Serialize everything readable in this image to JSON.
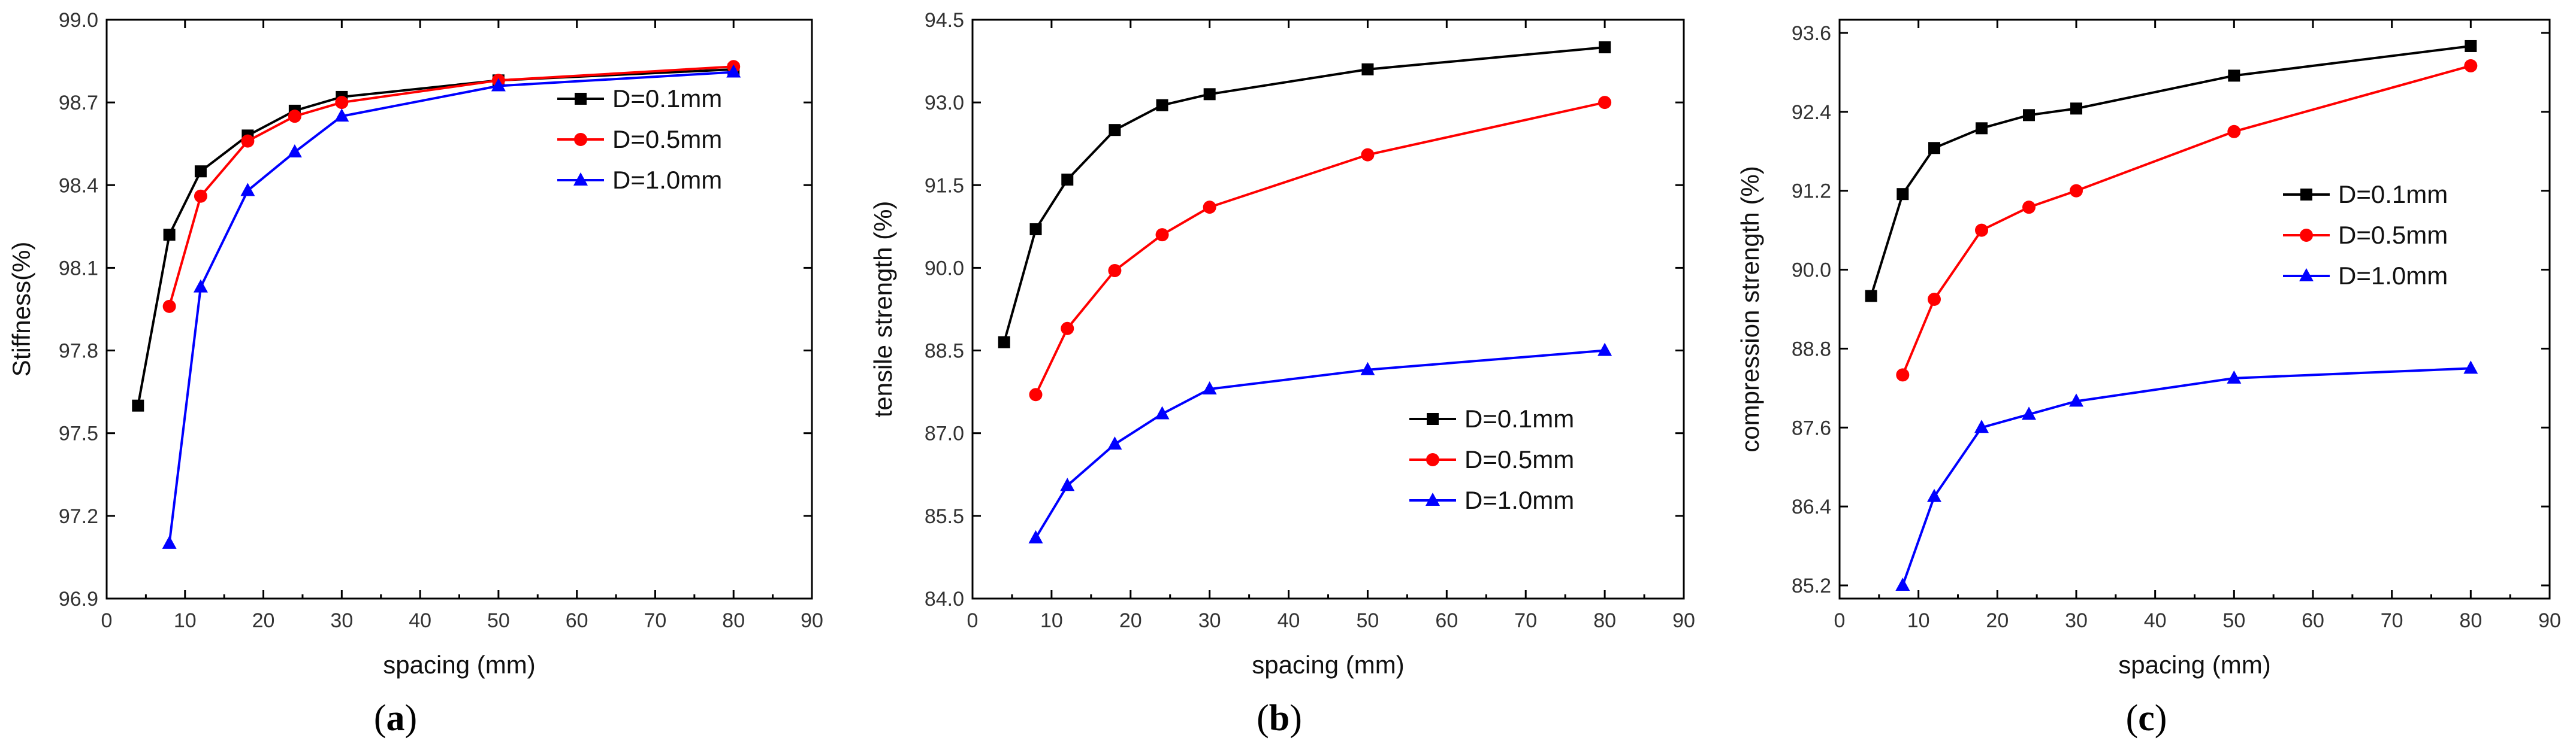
{
  "chart_data": [
    {
      "type": "line",
      "panel_label_open": "(",
      "panel_label_letter": "a",
      "panel_label_close": ")",
      "xlabel": "spacing (mm)",
      "ylabel": "Stiffness(%)",
      "xlim": [
        0,
        90
      ],
      "ylim": [
        96.9,
        99.0
      ],
      "xticks": [
        "0",
        "10",
        "20",
        "30",
        "40",
        "50",
        "60",
        "70",
        "80",
        "90"
      ],
      "yticks": [
        "96.9",
        "97.2",
        "97.5",
        "97.8",
        "98.1",
        "98.4",
        "98.7",
        "99.0"
      ],
      "legend_position": "center-right",
      "series": [
        {
          "name": "D=0.1mm",
          "color": "#000000",
          "marker": "square",
          "x": [
            4,
            8,
            12,
            18,
            24,
            30,
            50,
            80
          ],
          "y": [
            97.6,
            98.22,
            98.45,
            98.58,
            98.67,
            98.72,
            98.78,
            98.82
          ]
        },
        {
          "name": "D=0.5mm",
          "color": "#ff0000",
          "marker": "circle",
          "x": [
            8,
            12,
            18,
            24,
            30,
            50,
            80
          ],
          "y": [
            97.96,
            98.36,
            98.56,
            98.65,
            98.7,
            98.78,
            98.83
          ]
        },
        {
          "name": "D=1.0mm",
          "color": "#0000ff",
          "marker": "triangle",
          "x": [
            8,
            12,
            18,
            24,
            30,
            50,
            80
          ],
          "y": [
            97.1,
            98.03,
            98.38,
            98.52,
            98.65,
            98.76,
            98.81
          ]
        }
      ]
    },
    {
      "type": "line",
      "panel_label_open": "(",
      "panel_label_letter": "b",
      "panel_label_close": ")",
      "xlabel": "spacing (mm)",
      "ylabel": "tensile strength (%)",
      "xlim": [
        0,
        90
      ],
      "ylim": [
        84.0,
        94.5
      ],
      "xticks": [
        "0",
        "10",
        "20",
        "30",
        "40",
        "50",
        "60",
        "70",
        "80",
        "90"
      ],
      "yticks": [
        "84.0",
        "85.5",
        "87.0",
        "88.5",
        "90.0",
        "91.5",
        "93.0",
        "94.5"
      ],
      "legend_position": "bottom-right",
      "series": [
        {
          "name": "D=0.1mm",
          "color": "#000000",
          "marker": "square",
          "x": [
            4,
            8,
            12,
            18,
            24,
            30,
            50,
            80
          ],
          "y": [
            88.65,
            90.7,
            91.6,
            92.5,
            92.95,
            93.15,
            93.6,
            94.0
          ]
        },
        {
          "name": "D=0.5mm",
          "color": "#ff0000",
          "marker": "circle",
          "x": [
            8,
            12,
            18,
            24,
            30,
            50,
            80
          ],
          "y": [
            87.7,
            88.9,
            89.95,
            90.6,
            91.1,
            92.05,
            93.0
          ]
        },
        {
          "name": "D=1.0mm",
          "color": "#0000ff",
          "marker": "triangle",
          "x": [
            8,
            12,
            18,
            24,
            30,
            50,
            80
          ],
          "y": [
            85.1,
            86.05,
            86.8,
            87.35,
            87.8,
            88.15,
            88.5
          ]
        }
      ]
    },
    {
      "type": "line",
      "panel_label_open": "(",
      "panel_label_letter": "c",
      "panel_label_close": ")",
      "xlabel": "spacing (mm)",
      "ylabel": "compression strength (%)",
      "xlim": [
        0,
        90
      ],
      "ylim": [
        85.0,
        93.8
      ],
      "xticks": [
        "0",
        "10",
        "20",
        "30",
        "40",
        "50",
        "60",
        "70",
        "80",
        "90"
      ],
      "yticks": [
        "85.2",
        "86.4",
        "87.6",
        "88.8",
        "90.0",
        "91.2",
        "92.4",
        "93.6"
      ],
      "legend_position": "center-right",
      "series": [
        {
          "name": "D=0.1mm",
          "color": "#000000",
          "marker": "square",
          "x": [
            4,
            8,
            12,
            18,
            24,
            30,
            50,
            80
          ],
          "y": [
            89.6,
            91.15,
            91.85,
            92.15,
            92.35,
            92.45,
            92.95,
            93.4
          ]
        },
        {
          "name": "D=0.5mm",
          "color": "#ff0000",
          "marker": "circle",
          "x": [
            8,
            12,
            18,
            24,
            30,
            50,
            80
          ],
          "y": [
            88.4,
            89.55,
            90.6,
            90.95,
            91.2,
            92.1,
            93.1
          ]
        },
        {
          "name": "D=1.0mm",
          "color": "#0000ff",
          "marker": "triangle",
          "x": [
            8,
            12,
            18,
            24,
            30,
            50,
            80
          ],
          "y": [
            85.2,
            86.55,
            87.6,
            87.8,
            88.0,
            88.35,
            88.5
          ]
        }
      ]
    }
  ]
}
